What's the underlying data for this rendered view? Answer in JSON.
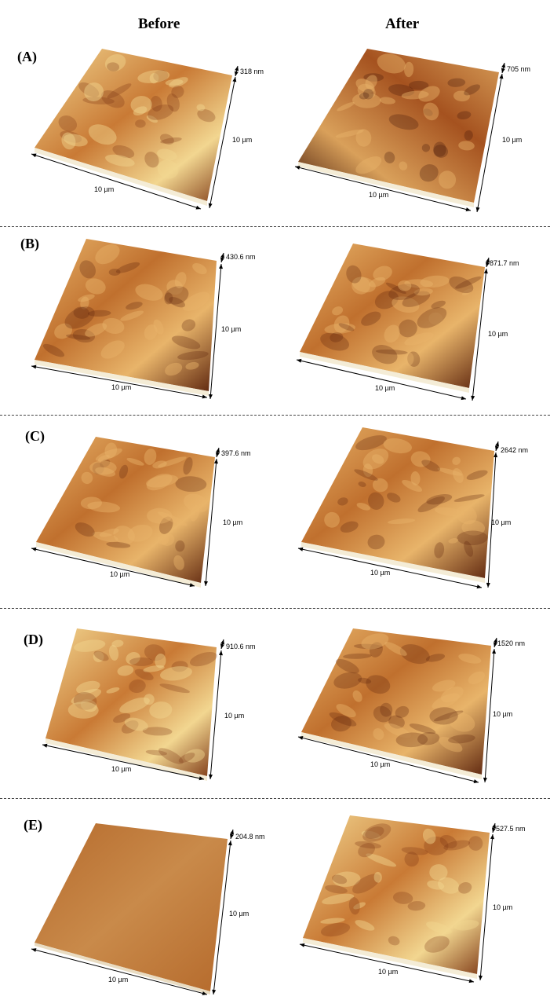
{
  "columns": {
    "before": "Before",
    "after": "After"
  },
  "rows": [
    {
      "label": "(A)",
      "before": {
        "z": "318 nm",
        "depth": "10 µm",
        "width": "10 µm",
        "palette": "light"
      },
      "after": {
        "z": "705 nm",
        "depth": "10 µm",
        "width": "10 µm",
        "palette": "dark"
      }
    },
    {
      "label": "(B)",
      "before": {
        "z": "430.6 nm",
        "depth": "10 µm",
        "width": "10 µm",
        "palette": "mid"
      },
      "after": {
        "z": "871.7 nm",
        "depth": "10 µm",
        "width": "10 µm",
        "palette": "mid"
      }
    },
    {
      "label": "(C)",
      "before": {
        "z": "397.6 nm",
        "depth": "10 µm",
        "width": "10 µm",
        "palette": "mid"
      },
      "after": {
        "z": "2642 nm",
        "depth": "10 µm",
        "width": "10 µm",
        "palette": "mid"
      }
    },
    {
      "label": "(D)",
      "before": {
        "z": "910.6 nm",
        "depth": "10 µm",
        "width": "10 µm",
        "palette": "light"
      },
      "after": {
        "z": "1520 nm",
        "depth": "10 µm",
        "width": "10 µm",
        "palette": "mid"
      }
    },
    {
      "label": "(E)",
      "before": {
        "z": "204.8 nm",
        "depth": "10 µm",
        "width": "10 µm",
        "palette": "flat"
      },
      "after": {
        "z": "527.5 nm",
        "depth": "10 µm",
        "width": "10 µm",
        "palette": "light"
      }
    }
  ],
  "colors": {
    "flat_a": "#b56a2c",
    "flat_b": "#c98a4a",
    "light_a": "#f2d690",
    "light_b": "#c97a35",
    "light_c": "#7a3412",
    "mid_a": "#e8b46a",
    "mid_b": "#c0702e",
    "mid_c": "#5a220c",
    "dark_a": "#d9a05a",
    "dark_b": "#a5521f",
    "dark_c": "#3d1306"
  }
}
